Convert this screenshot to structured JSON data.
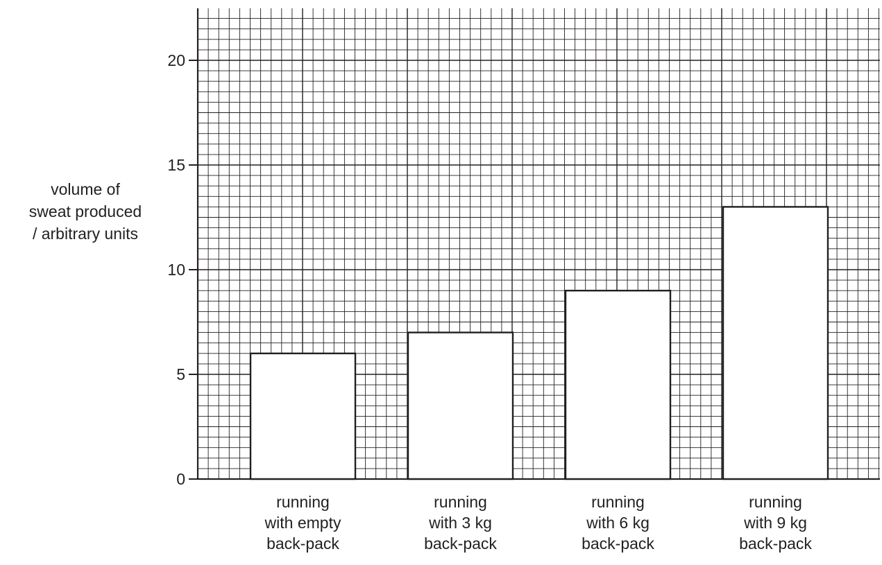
{
  "chart_data": {
    "type": "bar",
    "title": "",
    "categories": [
      "running with empty back-pack",
      "running with 3 kg back-pack",
      "running with 6 kg back-pack",
      "running with 9 kg back-pack"
    ],
    "category_label_lines": [
      [
        "running",
        "with empty",
        "back-pack"
      ],
      [
        "running",
        "with 3 kg",
        "back-pack"
      ],
      [
        "running",
        "with 6 kg",
        "back-pack"
      ],
      [
        "running",
        "with 9 kg",
        "back-pack"
      ]
    ],
    "values": [
      6,
      7,
      9,
      13
    ],
    "ylabel": "volume of sweat produced / arbitrary units",
    "ylabel_lines": [
      "volume of",
      "sweat produced",
      "/ arbitrary units"
    ],
    "ylim": [
      0,
      22
    ],
    "yticks": [
      0,
      5,
      10,
      15,
      20
    ],
    "xlabel": "",
    "grid": true,
    "legend": "none",
    "colors": {
      "ink": "#231f20",
      "bar_fill": "#ffffff",
      "background": "#ffffff"
    }
  }
}
